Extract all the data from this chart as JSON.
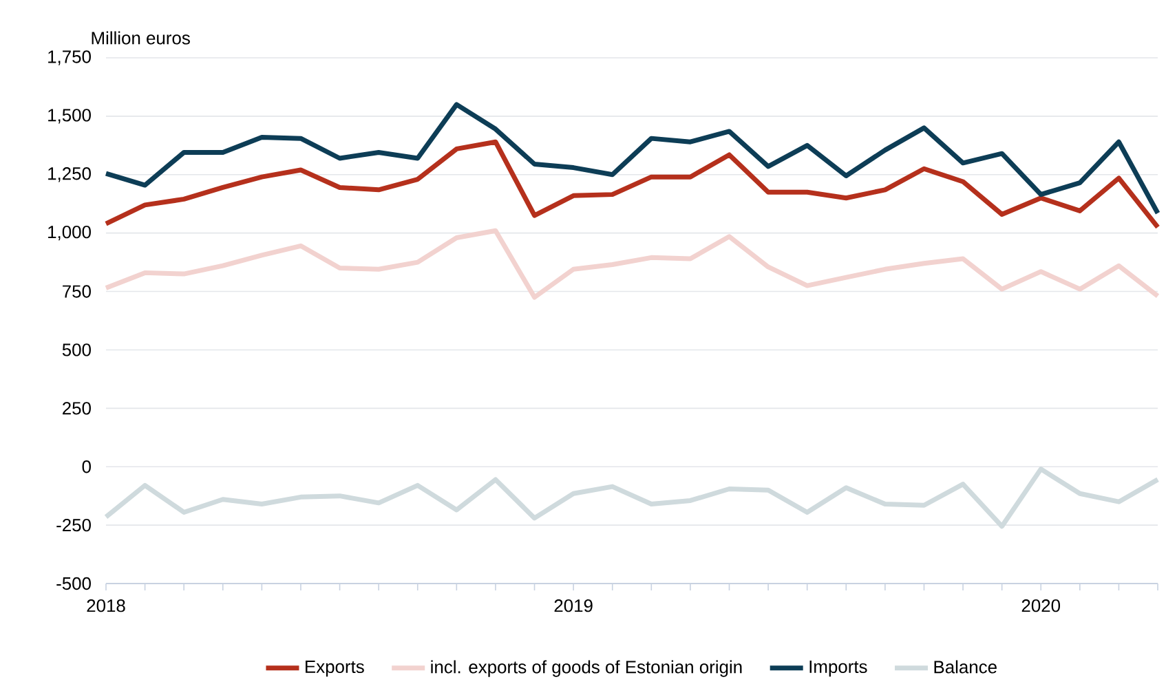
{
  "chart_data": {
    "type": "line",
    "ylabel": "Million euros",
    "x": [
      "2018-01",
      "2018-02",
      "2018-03",
      "2018-04",
      "2018-05",
      "2018-06",
      "2018-07",
      "2018-08",
      "2018-09",
      "2018-10",
      "2018-11",
      "2018-12",
      "2019-01",
      "2019-02",
      "2019-03",
      "2019-04",
      "2019-05",
      "2019-06",
      "2019-07",
      "2019-08",
      "2019-09",
      "2019-10",
      "2019-11",
      "2019-12",
      "2020-01",
      "2020-02",
      "2020-03",
      "2020-04"
    ],
    "series": [
      {
        "name": "Exports",
        "color": "#b5301c",
        "values": [
          1040,
          1120,
          1145,
          1195,
          1240,
          1270,
          1195,
          1185,
          1230,
          1360,
          1390,
          1075,
          1160,
          1165,
          1240,
          1240,
          1335,
          1175,
          1175,
          1150,
          1185,
          1275,
          1220,
          1080,
          1150,
          1095,
          1235,
          1025
        ]
      },
      {
        "name": "incl. exports of goods of Estonian origin",
        "color": "#f2d2cf",
        "values": [
          765,
          830,
          825,
          860,
          905,
          945,
          850,
          845,
          875,
          980,
          1010,
          725,
          845,
          865,
          895,
          890,
          985,
          855,
          775,
          810,
          845,
          870,
          890,
          760,
          835,
          760,
          860,
          730
        ]
      },
      {
        "name": "Imports",
        "color": "#0d3d56",
        "values": [
          1255,
          1205,
          1345,
          1345,
          1410,
          1405,
          1320,
          1345,
          1320,
          1550,
          1445,
          1295,
          1280,
          1250,
          1405,
          1390,
          1435,
          1285,
          1375,
          1245,
          1355,
          1450,
          1300,
          1340,
          1165,
          1215,
          1390,
          1085
        ]
      },
      {
        "name": "Balance",
        "color": "#cfdadd",
        "values": [
          -215,
          -80,
          -195,
          -140,
          -160,
          -130,
          -125,
          -155,
          -80,
          -185,
          -55,
          -220,
          -115,
          -85,
          -160,
          -145,
          -95,
          -100,
          -195,
          -90,
          -160,
          -165,
          -75,
          -255,
          -10,
          -115,
          -150,
          -55
        ]
      }
    ],
    "xlim": [
      "2018-01",
      "2020-04"
    ],
    "xticks": [
      {
        "value": "2018-01",
        "label": "2018"
      },
      {
        "value": "2018-02",
        "label": null
      },
      {
        "value": "2018-03",
        "label": null
      },
      {
        "value": "2018-04",
        "label": null
      },
      {
        "value": "2018-05",
        "label": null
      },
      {
        "value": "2018-06",
        "label": null
      },
      {
        "value": "2018-07",
        "label": null
      },
      {
        "value": "2018-08",
        "label": null
      },
      {
        "value": "2018-09",
        "label": null
      },
      {
        "value": "2018-10",
        "label": null
      },
      {
        "value": "2018-11",
        "label": null
      },
      {
        "value": "2018-12",
        "label": null
      },
      {
        "value": "2019-01",
        "label": "2019"
      },
      {
        "value": "2019-02",
        "label": null
      },
      {
        "value": "2019-03",
        "label": null
      },
      {
        "value": "2019-04",
        "label": null
      },
      {
        "value": "2019-05",
        "label": null
      },
      {
        "value": "2019-06",
        "label": null
      },
      {
        "value": "2019-07",
        "label": null
      },
      {
        "value": "2019-08",
        "label": null
      },
      {
        "value": "2019-09",
        "label": null
      },
      {
        "value": "2019-10",
        "label": null
      },
      {
        "value": "2019-11",
        "label": null
      },
      {
        "value": "2019-12",
        "label": null
      },
      {
        "value": "2020-01",
        "label": "2020"
      },
      {
        "value": "2020-02",
        "label": null
      },
      {
        "value": "2020-03",
        "label": null
      },
      {
        "value": "2020-04",
        "label": null
      }
    ],
    "ylim": [
      -500,
      1750
    ],
    "yticks": [
      -500,
      -250,
      0,
      250,
      500,
      750,
      {
        "value": 1000,
        "label": "1,000"
      },
      {
        "value": 1250,
        "label": "1,250"
      },
      {
        "value": 1500,
        "label": "1,500"
      },
      {
        "value": 1750,
        "label": "1,750"
      }
    ],
    "grid": "y",
    "legend": "bottom",
    "line_style": "solid"
  }
}
